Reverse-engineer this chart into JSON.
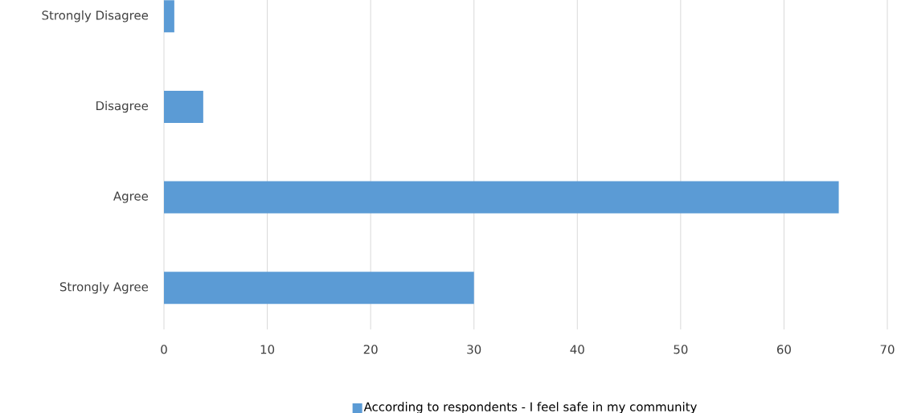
{
  "chart_data": {
    "type": "bar",
    "orientation": "horizontal",
    "categories": [
      "Strongly Disagree",
      "Disagree",
      "Agree",
      "Strongly Agree"
    ],
    "series": [
      {
        "name": "According to respondents - I feel safe in my community",
        "color": "#5b9bd5",
        "values": [
          1,
          3.8,
          65.3,
          30
        ]
      }
    ],
    "xlim": [
      0,
      70
    ],
    "xticks": [
      0,
      10,
      20,
      30,
      40,
      50,
      60,
      70
    ],
    "grid": "x",
    "legend": "bottom"
  }
}
